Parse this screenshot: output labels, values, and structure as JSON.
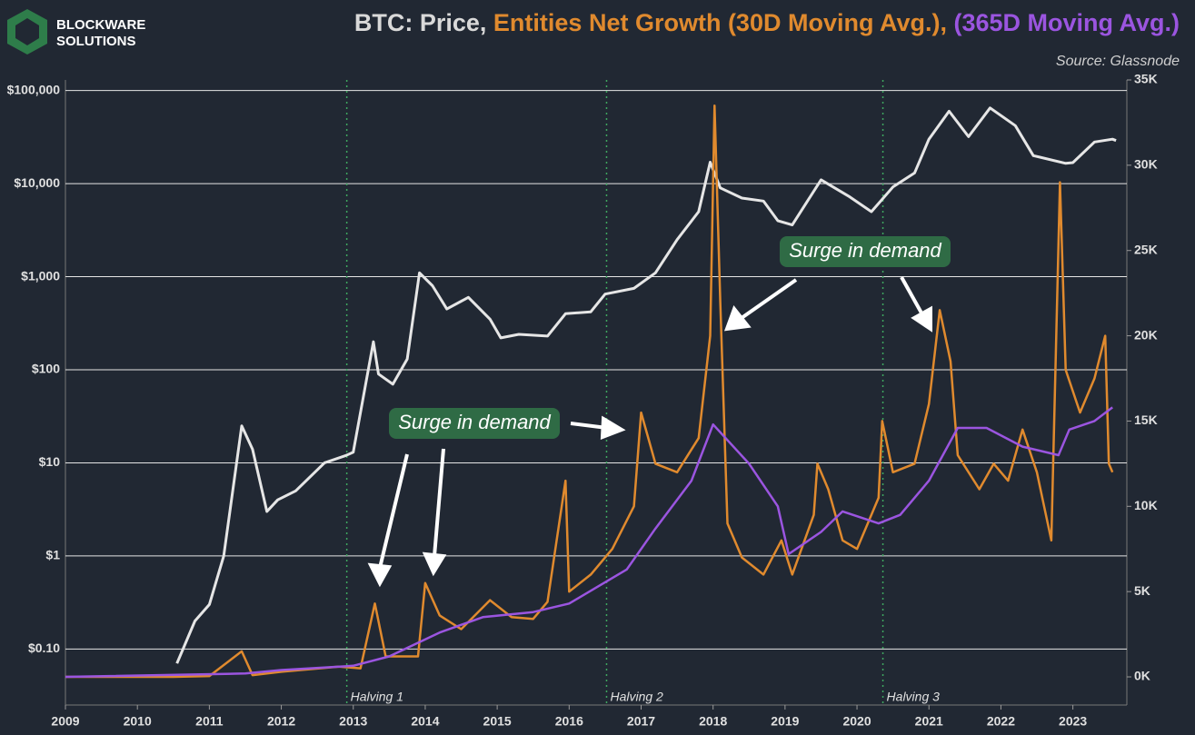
{
  "logo": {
    "line1": "BLOCKWARE",
    "line2": "SOLUTIONS"
  },
  "chart_data": {
    "type": "line",
    "title_parts": [
      {
        "text": "BTC: Price,",
        "color": "#d9d9d9"
      },
      {
        "text": "Entities Net Growth (30D Moving Avg.),",
        "color": "#e08a2e"
      },
      {
        "text": "(365D Moving Avg.)",
        "color": "#9b55e0"
      }
    ],
    "source": "Source: Glassnode",
    "log_scale": "y",
    "grid": true,
    "xlim": [
      2009,
      2023.75
    ],
    "xticks": [
      2009,
      2010,
      2011,
      2012,
      2013,
      2014,
      2015,
      2016,
      2017,
      2018,
      2019,
      2020,
      2021,
      2022,
      2023
    ],
    "ylim": [
      0.025,
      130000
    ],
    "yticks": [
      {
        "value": 0.1,
        "label": "$0.10"
      },
      {
        "value": 1,
        "label": "$1"
      },
      {
        "value": 10,
        "label": "$10"
      },
      {
        "value": 100,
        "label": "$100"
      },
      {
        "value": 1000,
        "label": "$1,000"
      },
      {
        "value": 10000,
        "label": "$10,000"
      },
      {
        "value": 100000,
        "label": "$100,000"
      }
    ],
    "y2lim": [
      -1650,
      35000
    ],
    "y2ticks": [
      {
        "value": 0,
        "label": "0K"
      },
      {
        "value": 5000,
        "label": "5K"
      },
      {
        "value": 10000,
        "label": "10K"
      },
      {
        "value": 15000,
        "label": "15K"
      },
      {
        "value": 20000,
        "label": "20K"
      },
      {
        "value": 25000,
        "label": "25K"
      },
      {
        "value": 30000,
        "label": "30K"
      },
      {
        "value": 35000,
        "label": "35K"
      }
    ],
    "series": [
      {
        "color": "#e6e6e6",
        "x": [
          2010.55,
          2010.8,
          2011.0,
          2011.2,
          2011.45,
          2011.6,
          2011.8,
          2011.95,
          2012.2,
          2012.6,
          2012.9,
          2013.0,
          2013.28,
          2013.35,
          2013.55,
          2013.75,
          2013.92,
          2014.1,
          2014.3,
          2014.6,
          2014.9,
          2015.05,
          2015.3,
          2015.7,
          2015.95,
          2016.3,
          2016.5,
          2016.9,
          2017.2,
          2017.5,
          2017.8,
          2017.96,
          2018.1,
          2018.4,
          2018.7,
          2018.9,
          2019.1,
          2019.5,
          2019.9,
          2020.2,
          2020.5,
          2020.8,
          2021.0,
          2021.28,
          2021.55,
          2021.85,
          2022.2,
          2022.45,
          2022.9,
          2023.0,
          2023.3,
          2023.55,
          2023.6
        ],
        "values": [
          0.07,
          0.2,
          0.3,
          1,
          25,
          14,
          3,
          4,
          5,
          10,
          12,
          13,
          200,
          90,
          70,
          130,
          1100,
          800,
          450,
          600,
          350,
          220,
          240,
          230,
          400,
          420,
          650,
          750,
          1100,
          2500,
          5000,
          17000,
          9000,
          7000,
          6500,
          4000,
          3600,
          11000,
          7200,
          5000,
          9200,
          13000,
          30000,
          60000,
          32000,
          65000,
          42000,
          20000,
          16500,
          16800,
          28000,
          30000,
          29000
        ]
      },
      {
        "color": "#e08a2e",
        "axis": "y2",
        "x": [
          2009.0,
          2010.5,
          2011.0,
          2011.45,
          2011.6,
          2012.0,
          2012.8,
          2013.1,
          2013.3,
          2013.45,
          2013.9,
          2014.0,
          2014.2,
          2014.5,
          2014.9,
          2015.2,
          2015.5,
          2015.7,
          2015.95,
          2016.0,
          2016.3,
          2016.6,
          2016.9,
          2017.0,
          2017.2,
          2017.5,
          2017.8,
          2017.96,
          2018.02,
          2018.1,
          2018.2,
          2018.4,
          2018.7,
          2018.95,
          2019.1,
          2019.4,
          2019.45,
          2019.6,
          2019.8,
          2020.0,
          2020.3,
          2020.35,
          2020.5,
          2020.8,
          2021.0,
          2021.15,
          2021.3,
          2021.4,
          2021.7,
          2021.9,
          2022.1,
          2022.3,
          2022.5,
          2022.7,
          2022.82,
          2022.9,
          2023.1,
          2023.3,
          2023.45,
          2023.5,
          2023.55
        ],
        "values": [
          0,
          0,
          50,
          1500,
          100,
          300,
          600,
          500,
          4300,
          1200,
          1200,
          5500,
          3600,
          2800,
          4500,
          3500,
          3400,
          4400,
          11500,
          5000,
          6000,
          7500,
          10000,
          15500,
          12500,
          12000,
          14000,
          20000,
          33500,
          22000,
          9000,
          7000,
          6000,
          8000,
          6000,
          9500,
          12500,
          11000,
          8000,
          7500,
          10500,
          15000,
          12000,
          12500,
          16000,
          21500,
          18500,
          13000,
          11000,
          12500,
          11500,
          14500,
          12000,
          8000,
          29000,
          18000,
          15500,
          17500,
          20000,
          12500,
          12000
        ]
      },
      {
        "color": "#9b55e0",
        "axis": "y2",
        "x": [
          2009.0,
          2011.5,
          2012.0,
          2013.0,
          2013.5,
          2014.2,
          2014.8,
          2015.5,
          2016.0,
          2016.8,
          2017.2,
          2017.7,
          2018.0,
          2018.5,
          2018.9,
          2019.05,
          2019.5,
          2019.8,
          2020.3,
          2020.6,
          2021.0,
          2021.4,
          2021.8,
          2022.3,
          2022.8,
          2022.95,
          2023.3,
          2023.55
        ],
        "values": [
          0,
          200,
          400,
          650,
          1200,
          2600,
          3500,
          3800,
          4300,
          6300,
          8700,
          11500,
          14800,
          12500,
          10000,
          7200,
          8500,
          9700,
          9000,
          9500,
          11500,
          14600,
          14600,
          13500,
          13000,
          14500,
          15000,
          15800
        ]
      }
    ],
    "halvings": [
      {
        "x": 2012.91,
        "label": "Halving 1"
      },
      {
        "x": 2016.52,
        "label": "Halving 2"
      },
      {
        "x": 2020.36,
        "label": "Halving 3"
      }
    ],
    "annotations": [
      "Surge in demand",
      "Surge in demand"
    ]
  }
}
